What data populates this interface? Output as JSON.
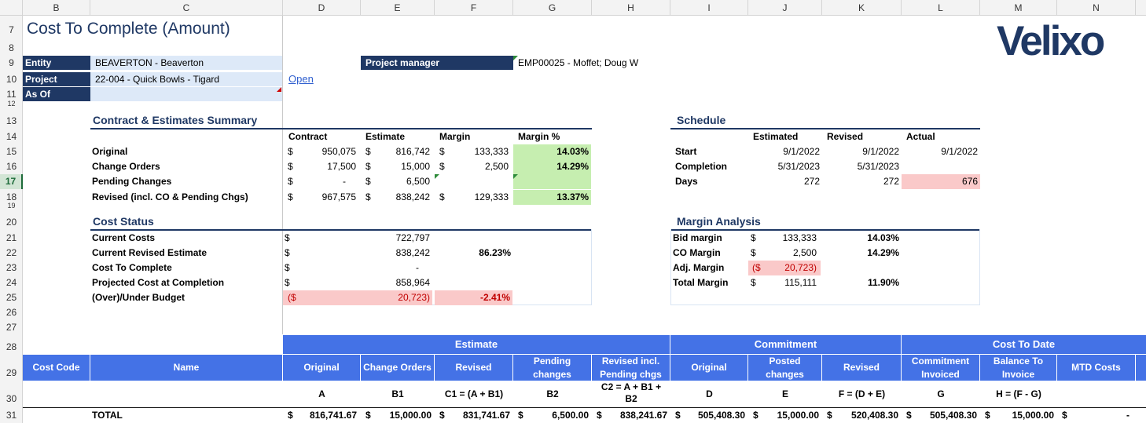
{
  "columns": [
    "B",
    "C",
    "D",
    "E",
    "F",
    "G",
    "H",
    "I",
    "J",
    "K",
    "L",
    "M",
    "N"
  ],
  "rows": [
    "7",
    "8",
    "9",
    "10",
    "11",
    "12",
    "13",
    "14",
    "15",
    "16",
    "17",
    "18",
    "19",
    "20",
    "21",
    "22",
    "23",
    "24",
    "25",
    "26",
    "27",
    "28",
    "29",
    "30",
    "31"
  ],
  "title": "Cost To Complete (Amount)",
  "logo": "Velixo",
  "fields": {
    "entity_label": "Entity",
    "entity_value": "BEAVERTON - Beaverton",
    "project_label": "Project",
    "project_value": "22-004 - Quick Bowls - Tigard",
    "asof_label": "As Of",
    "asof_value": "",
    "open_link": "Open",
    "pm_label": "Project manager",
    "pm_value": "EMP00025 - Moffet; Doug W"
  },
  "summary": {
    "title": "Contract & Estimates Summary",
    "headers": [
      "Contract",
      "Estimate",
      "Margin",
      "Margin %"
    ],
    "rows": [
      {
        "label": "Original",
        "c_sym": "$",
        "contract": "950,075",
        "e_sym": "$",
        "estimate": "816,742",
        "m_sym": "$",
        "margin": "133,333",
        "pct": "14.03%"
      },
      {
        "label": "Change Orders",
        "c_sym": "$",
        "contract": "17,500",
        "e_sym": "$",
        "estimate": "15,000",
        "m_sym": "$",
        "margin": "2,500",
        "pct": "14.29%"
      },
      {
        "label": "Pending Changes",
        "c_sym": "$",
        "contract": "-",
        "e_sym": "$",
        "estimate": "6,500",
        "m_sym": "",
        "margin": "",
        "pct": ""
      },
      {
        "label": "Revised (incl. CO & Pending Chgs)",
        "c_sym": "$",
        "contract": "967,575",
        "e_sym": "$",
        "estimate": "838,242",
        "m_sym": "$",
        "margin": "129,333",
        "pct": "13.37%"
      }
    ]
  },
  "schedule": {
    "title": "Schedule",
    "headers": [
      "Estimated",
      "Revised",
      "Actual"
    ],
    "rows": [
      {
        "label": "Start",
        "estimated": "9/1/2022",
        "revised": "9/1/2022",
        "actual": "9/1/2022"
      },
      {
        "label": "Completion",
        "estimated": "5/31/2023",
        "revised": "5/31/2023",
        "actual": ""
      },
      {
        "label": "Days",
        "estimated": "272",
        "revised": "272",
        "actual": "676"
      }
    ]
  },
  "cost_status": {
    "title": "Cost Status",
    "rows": [
      {
        "label": "Current Costs",
        "sym": "$",
        "value": "722,797",
        "pct": ""
      },
      {
        "label": "Current Revised Estimate",
        "sym": "$",
        "value": "838,242",
        "pct": "86.23%"
      },
      {
        "label": "Cost To Complete",
        "sym": "$",
        "value": "-",
        "pct": ""
      },
      {
        "label": "Projected Cost at Completion",
        "sym": "$",
        "value": "858,964",
        "pct": ""
      },
      {
        "label": "(Over)/Under Budget",
        "sym": "($",
        "value": "20,723)",
        "pct": "-2.41%"
      }
    ]
  },
  "margin_analysis": {
    "title": "Margin Analysis",
    "rows": [
      {
        "label": "Bid margin",
        "sym": "$",
        "value": "133,333",
        "pct": "14.03%"
      },
      {
        "label": "CO Margin",
        "sym": "$",
        "value": "2,500",
        "pct": "14.29%"
      },
      {
        "label": "Adj. Margin",
        "sym": "($",
        "value": "20,723)",
        "pct": ""
      },
      {
        "label": "Total Margin",
        "sym": "$",
        "value": "115,111",
        "pct": "11.90%"
      }
    ]
  },
  "grid": {
    "group_estimate": "Estimate",
    "group_commitment": "Commitment",
    "group_cost_to_date": "Cost To Date",
    "col_cost_code": "Cost Code",
    "col_name": "Name",
    "cols": [
      {
        "label": "Original",
        "formula": "A"
      },
      {
        "label": "Change Orders",
        "formula": "B1"
      },
      {
        "label": "Revised",
        "formula": "C1 = (A + B1)"
      },
      {
        "label": "Pending changes",
        "formula": "B2"
      },
      {
        "label": "Revised incl. Pending chgs",
        "formula": "C2 = A + B1 + B2"
      },
      {
        "label": "Original",
        "formula": "D"
      },
      {
        "label": "Posted changes",
        "formula": "E"
      },
      {
        "label": "Revised",
        "formula": "F = (D + E)"
      },
      {
        "label": "Commitment Invoiced",
        "formula": "G"
      },
      {
        "label": "Balance To Invoice",
        "formula": "H = (F - G)"
      },
      {
        "label": "MTD Costs",
        "formula": ""
      }
    ],
    "total_label": "TOTAL",
    "totals": [
      "816,741.67",
      "15,000.00",
      "831,741.67",
      "6,500.00",
      "838,241.67",
      "505,408.30",
      "15,000.00",
      "520,408.30",
      "505,408.30",
      "15,000.00",
      "-"
    ]
  },
  "colors": {
    "navy": "#1f3864",
    "band": "#4472e6",
    "green_fill": "#c6eeb0",
    "pink_fill": "#fac9c9",
    "link": "#2f5fcf"
  }
}
